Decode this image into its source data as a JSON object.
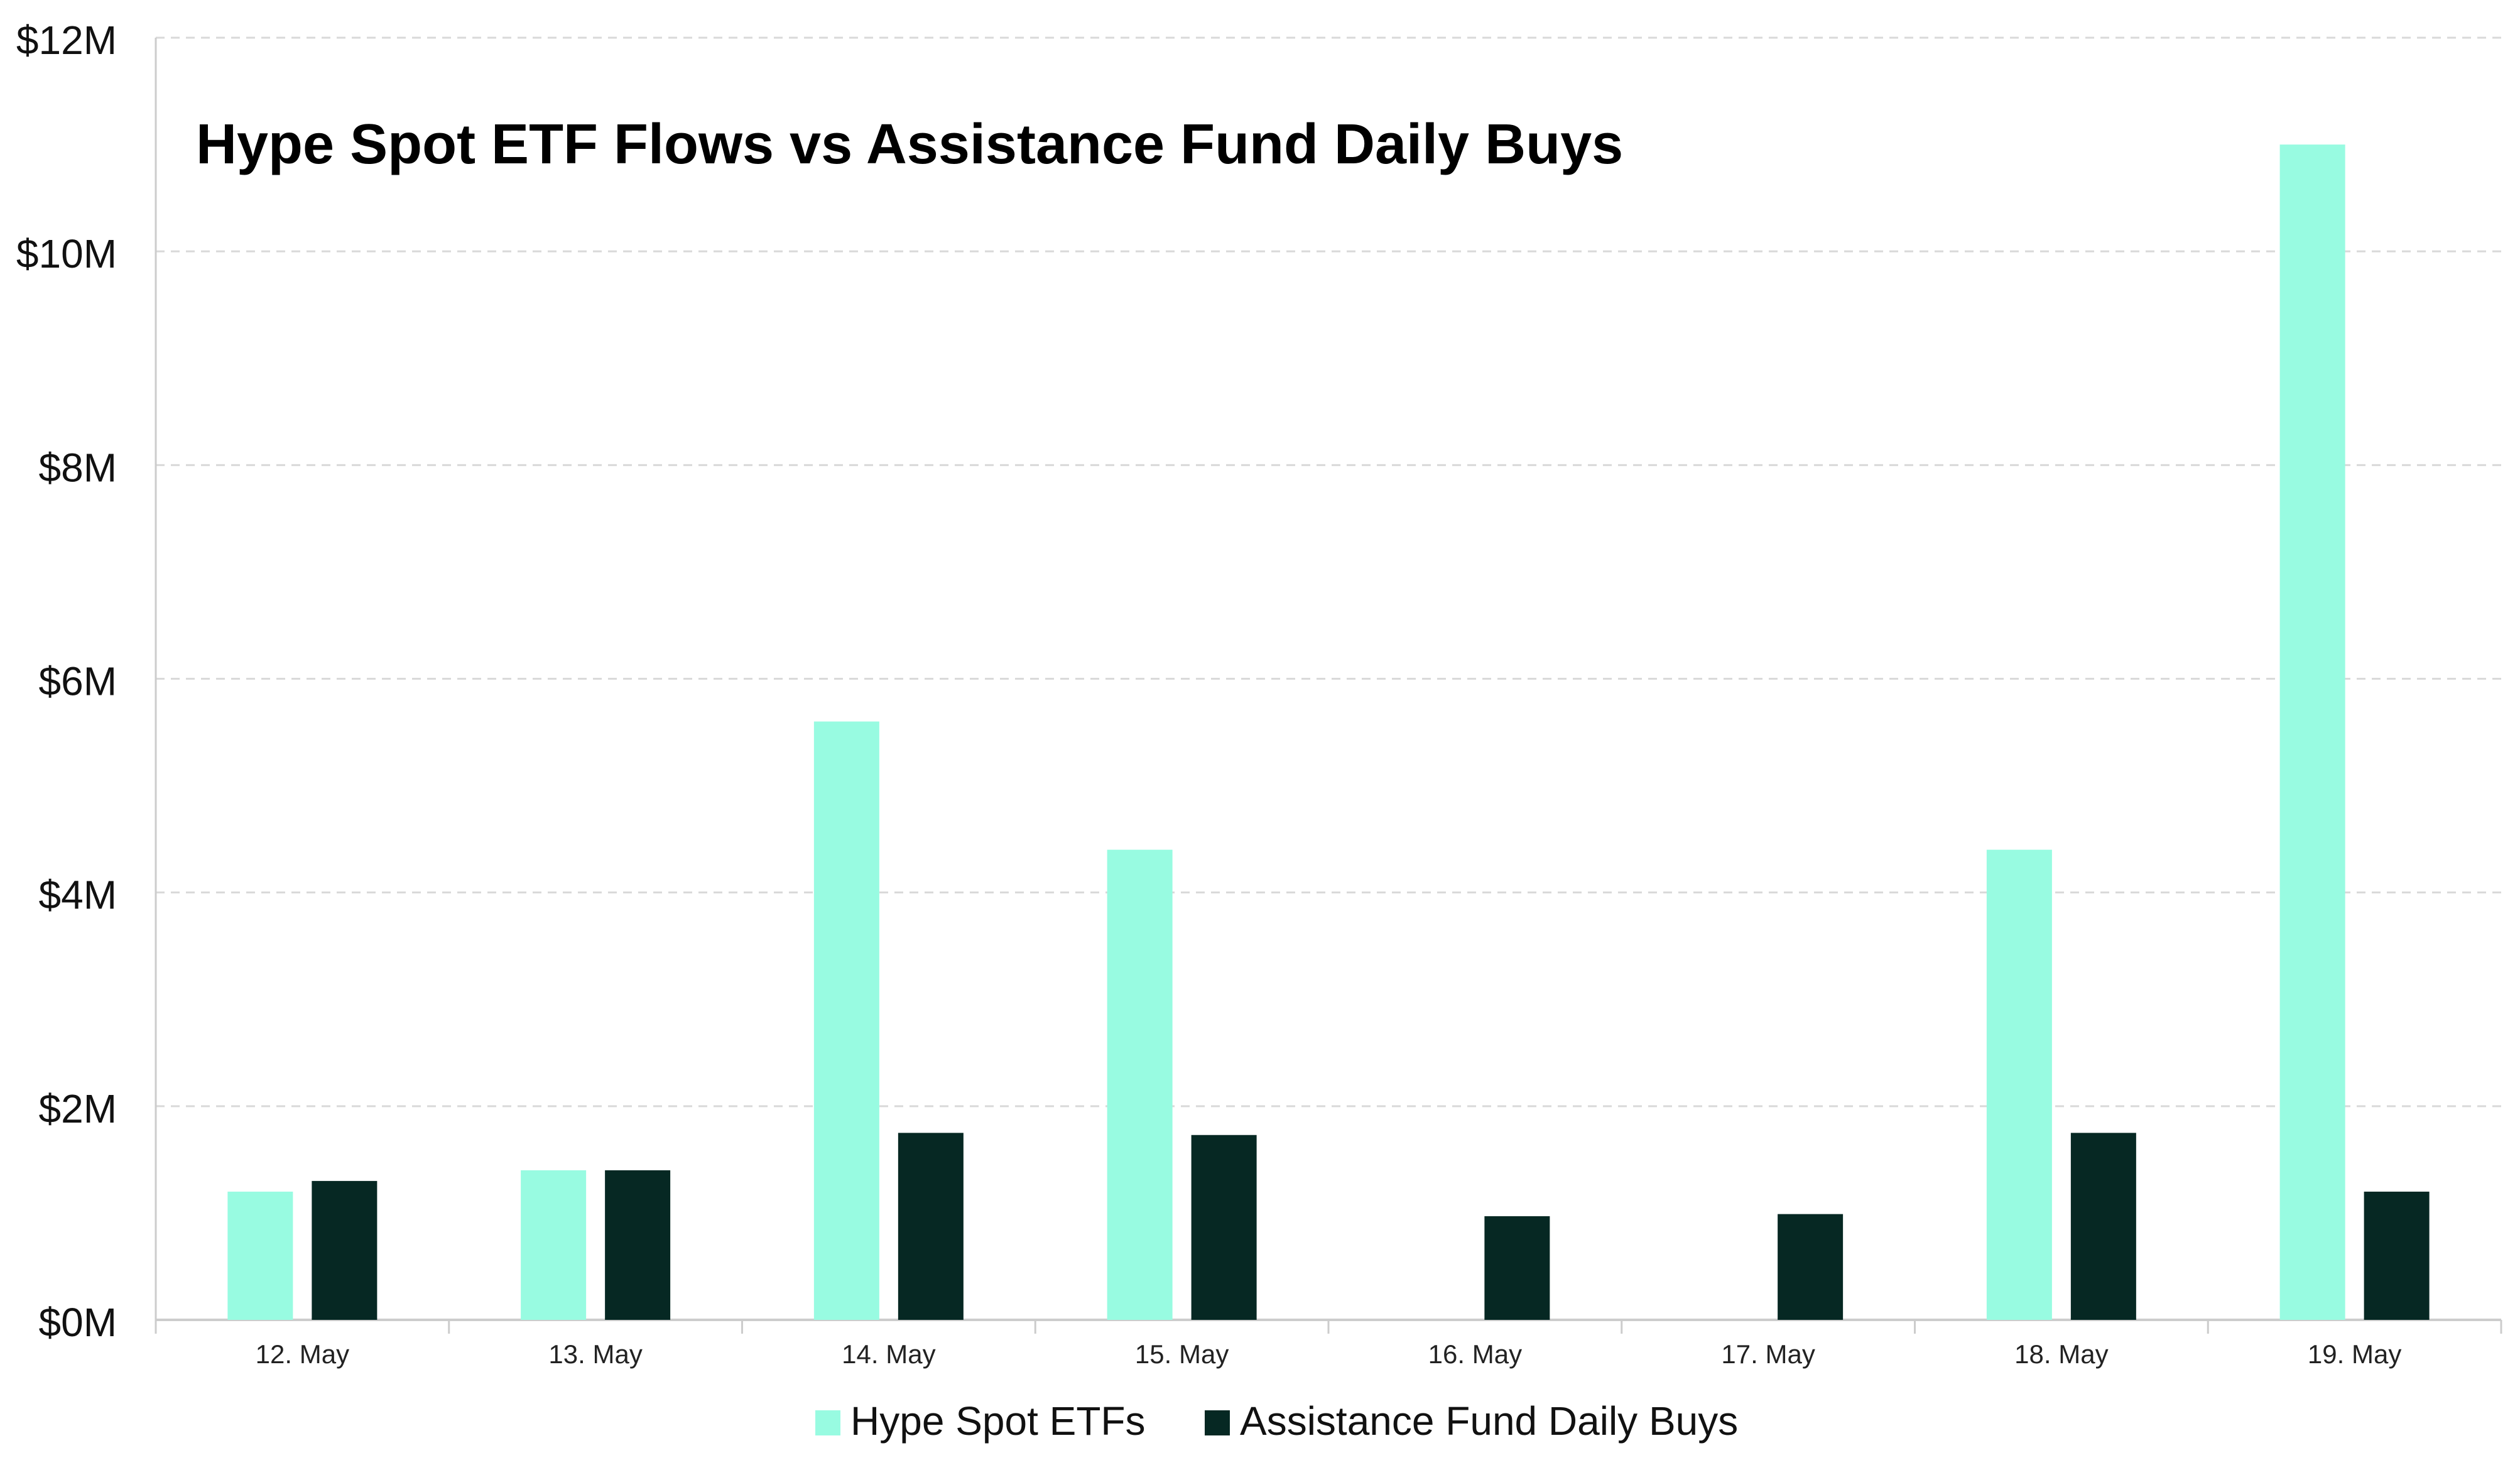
{
  "colors": {
    "hype_spot_etfs": "#98FBE1",
    "assistance_fund": "#062823",
    "gridline": "#D9D9D9",
    "axis": "#CCCCCC",
    "background": "#FFFFFF"
  },
  "chart_data": {
    "type": "bar",
    "title": "Hype Spot ETF Flows vs Assistance Fund Daily Buys",
    "xlabel": "",
    "ylabel": "",
    "ylim": [
      0,
      12
    ],
    "y_unit": "M",
    "y_ticks": [
      "$0M",
      "$2M",
      "$4M",
      "$6M",
      "$8M",
      "$10M",
      "$12M"
    ],
    "categories": [
      "12. May",
      "13. May",
      "14. May",
      "15. May",
      "16. May",
      "17. May",
      "18. May",
      "19. May"
    ],
    "series": [
      {
        "name": "Hype Spot ETFs",
        "color_key": "hype_spot_etfs",
        "values": [
          1.2,
          1.4,
          5.6,
          4.4,
          0,
          0,
          4.4,
          11.0
        ]
      },
      {
        "name": "Assistance Fund Daily Buys",
        "color_key": "assistance_fund",
        "values": [
          1.3,
          1.4,
          1.75,
          1.73,
          0.97,
          0.99,
          1.75,
          1.2
        ]
      }
    ],
    "grid": true,
    "grid_style": "dashed",
    "legend_position": "bottom-center"
  }
}
